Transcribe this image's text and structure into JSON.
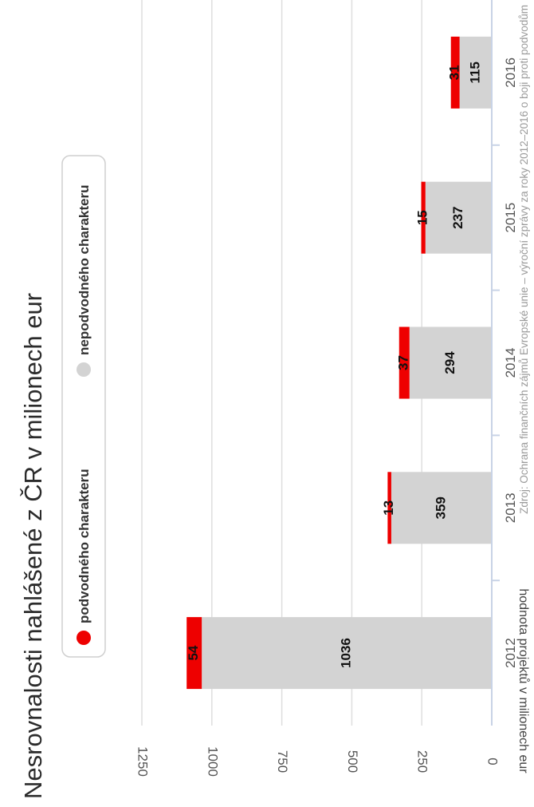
{
  "chart_data": {
    "type": "bar",
    "orientation": "vertical",
    "stacked": true,
    "title": "Nesrovnalosti nahlášené z ČR v milionech eur",
    "ylabel": "hodnota projektů v milionech eur",
    "xlabel": "",
    "categories": [
      "2012",
      "2013",
      "2014",
      "2015",
      "2016"
    ],
    "series": [
      {
        "name": "nepodvodného charakteru",
        "values": [
          1036,
          359,
          294,
          237,
          115
        ],
        "color": "#d3d3d3"
      },
      {
        "name": "podvodného charakteru",
        "values": [
          54,
          13,
          37,
          15,
          31
        ],
        "color": "#ee0000"
      }
    ],
    "ylim": [
      0,
      1250
    ],
    "yticks": [
      "0",
      "250",
      "500",
      "750",
      "1000",
      "1250"
    ],
    "grid": true,
    "legend": "top",
    "source": "Zdroj: Ochrana finančních zájmů Evropské unie – výroční zprávy za roky 2012–2016 o boji proti podvodům"
  }
}
